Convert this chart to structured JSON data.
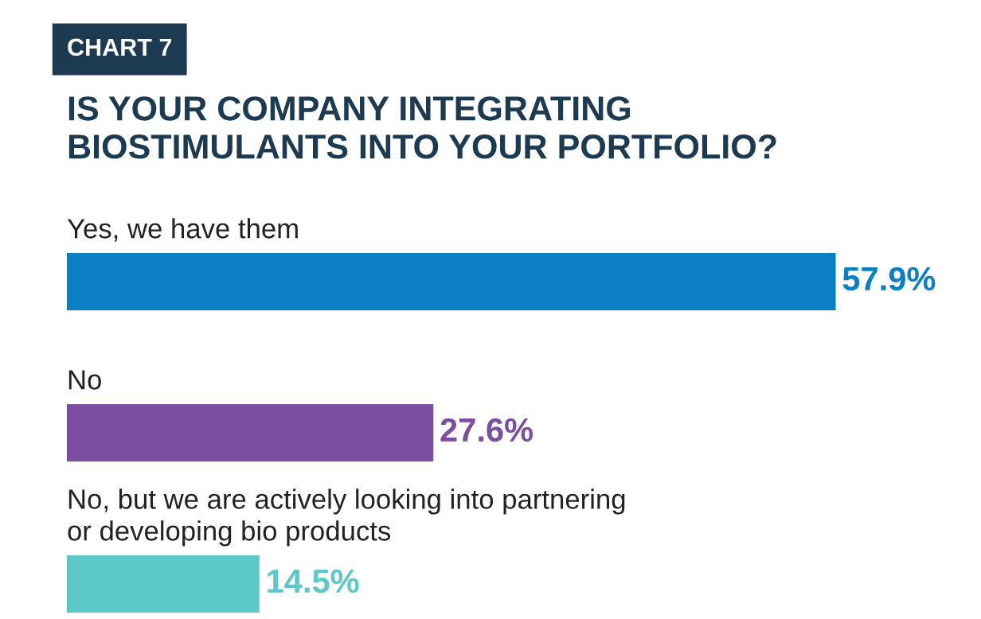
{
  "chart_data": {
    "type": "bar",
    "orientation": "horizontal",
    "title": "IS YOUR COMPANY INTEGRATING\nBIOSTIMULANTS INTO YOUR PORTFOLIO?",
    "annotations": [
      "CHART 7"
    ],
    "categories": [
      "Yes, we have them",
      "No",
      "No, but we are actively looking into partnering\nor developing bio products"
    ],
    "values": [
      57.9,
      27.6,
      14.5
    ],
    "colors": [
      "#0a7fc4",
      "#7a4fa0",
      "#5cc8c8"
    ],
    "value_labels": [
      "57.9%",
      "27.6%",
      "14.5%"
    ],
    "tick_labels": false
  }
}
